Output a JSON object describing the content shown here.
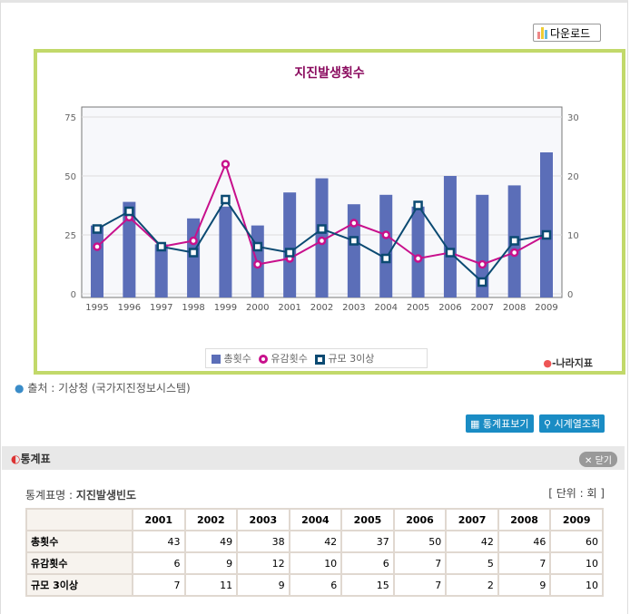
{
  "download_label": "다운로드",
  "chart_data": {
    "type": "bar+line",
    "title": "지진발생횟수",
    "categories": [
      "1995",
      "1996",
      "1997",
      "1998",
      "1999",
      "2000",
      "2001",
      "2002",
      "2003",
      "2004",
      "2005",
      "2006",
      "2007",
      "2008",
      "2009"
    ],
    "series": [
      {
        "name": "총횟수",
        "type": "bar",
        "axis": "left",
        "color": "#5b6eb8",
        "values": [
          29,
          39,
          21,
          32,
          37,
          29,
          43,
          49,
          38,
          42,
          37,
          50,
          42,
          46,
          60
        ]
      },
      {
        "name": "유감횟수",
        "type": "line",
        "axis": "right",
        "color": "#c8108c",
        "values": [
          8,
          13,
          8,
          9,
          22,
          5,
          6,
          9,
          12,
          10,
          6,
          7,
          5,
          7,
          10
        ]
      },
      {
        "name": "규모 3이상",
        "type": "line",
        "axis": "right",
        "color": "#0b4a72",
        "values": [
          11,
          14,
          8,
          7,
          16,
          8,
          7,
          11,
          9,
          6,
          15,
          7,
          2,
          9,
          10
        ]
      }
    ],
    "left_ticks": [
      "0",
      "25",
      "50",
      "75"
    ],
    "ylim_left": [
      0,
      75
    ],
    "right_ticks": [
      "0",
      "10",
      "20",
      "30"
    ],
    "ylim_right": [
      0,
      30
    ],
    "grid": true,
    "legend": "bottom"
  },
  "brand": "나라지표",
  "source": "출처 : 기상청 (국가지진정보시스템)",
  "buttons": {
    "table_view": "통계표보기",
    "series_view": "시계열조회"
  },
  "section": {
    "title": "통계표",
    "close": "닫기"
  },
  "table": {
    "name_label": "통계표명 : ",
    "name": "지진발생빈도",
    "unit": "[ 단위 : 회 ]",
    "headers": [
      "2001",
      "2002",
      "2003",
      "2004",
      "2005",
      "2006",
      "2007",
      "2008",
      "2009"
    ],
    "rows": [
      {
        "label": "총횟수",
        "values": [
          "43",
          "49",
          "38",
          "42",
          "37",
          "50",
          "42",
          "46",
          "60"
        ]
      },
      {
        "label": "유감횟수",
        "values": [
          "6",
          "9",
          "12",
          "10",
          "6",
          "7",
          "5",
          "7",
          "10"
        ]
      },
      {
        "label": "규모 3이상",
        "values": [
          "7",
          "11",
          "9",
          "6",
          "15",
          "7",
          "2",
          "9",
          "10"
        ]
      }
    ]
  }
}
